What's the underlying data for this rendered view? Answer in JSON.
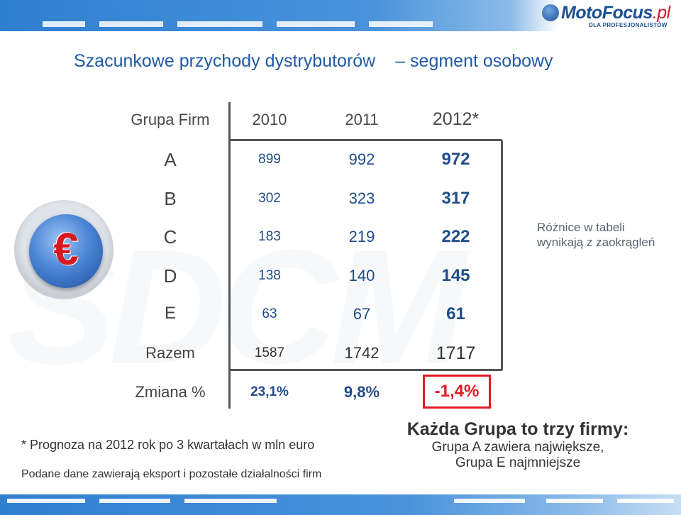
{
  "logo": {
    "brand": "MotoFocus",
    "tld": ".pl",
    "tagline": "DLA PROFESJONALISTÓW"
  },
  "title": {
    "main": "Szacunkowe przychody dystrybutorów",
    "segment": "– segment osobowy"
  },
  "table": {
    "headers": [
      "Grupa Firm",
      "2010",
      "2011",
      "2012*"
    ],
    "rows": [
      {
        "group": "A",
        "v2010": "899",
        "v2011": "992",
        "v2012": "972"
      },
      {
        "group": "B",
        "v2010": "302",
        "v2011": "323",
        "v2012": "317"
      },
      {
        "group": "C",
        "v2010": "183",
        "v2011": "219",
        "v2012": "222"
      },
      {
        "group": "D",
        "v2010": "138",
        "v2011": "140",
        "v2012": "145"
      },
      {
        "group": "E",
        "v2010": "63",
        "v2011": "67",
        "v2012": "61"
      }
    ],
    "total": {
      "label": "Razem",
      "v2010": "1587",
      "v2011": "1742",
      "v2012": "1717"
    },
    "change": {
      "label": "Zmiana %",
      "v2010": "23,1%",
      "v2011": "9,8%",
      "v2012": "-1,4%"
    }
  },
  "euro_symbol": "€",
  "side_note": {
    "line1": "Różnice w tabeli",
    "line2": "wynikają z zaokrągleń"
  },
  "footnotes": {
    "forecast": "* Prognoza na 2012 rok po 3 kwartałach w mln euro",
    "scope": "Podane dane zawierają eksport i pozostałe działalności firm"
  },
  "groups_note": {
    "title": "Każda Grupa to trzy firmy:",
    "line1": "Grupa A zawiera największe,",
    "line2": "Grupa E najmniejsze"
  },
  "colors": {
    "accent": "#1f5aa6",
    "highlight": "#e31b23",
    "band": "#2f7fd0"
  }
}
